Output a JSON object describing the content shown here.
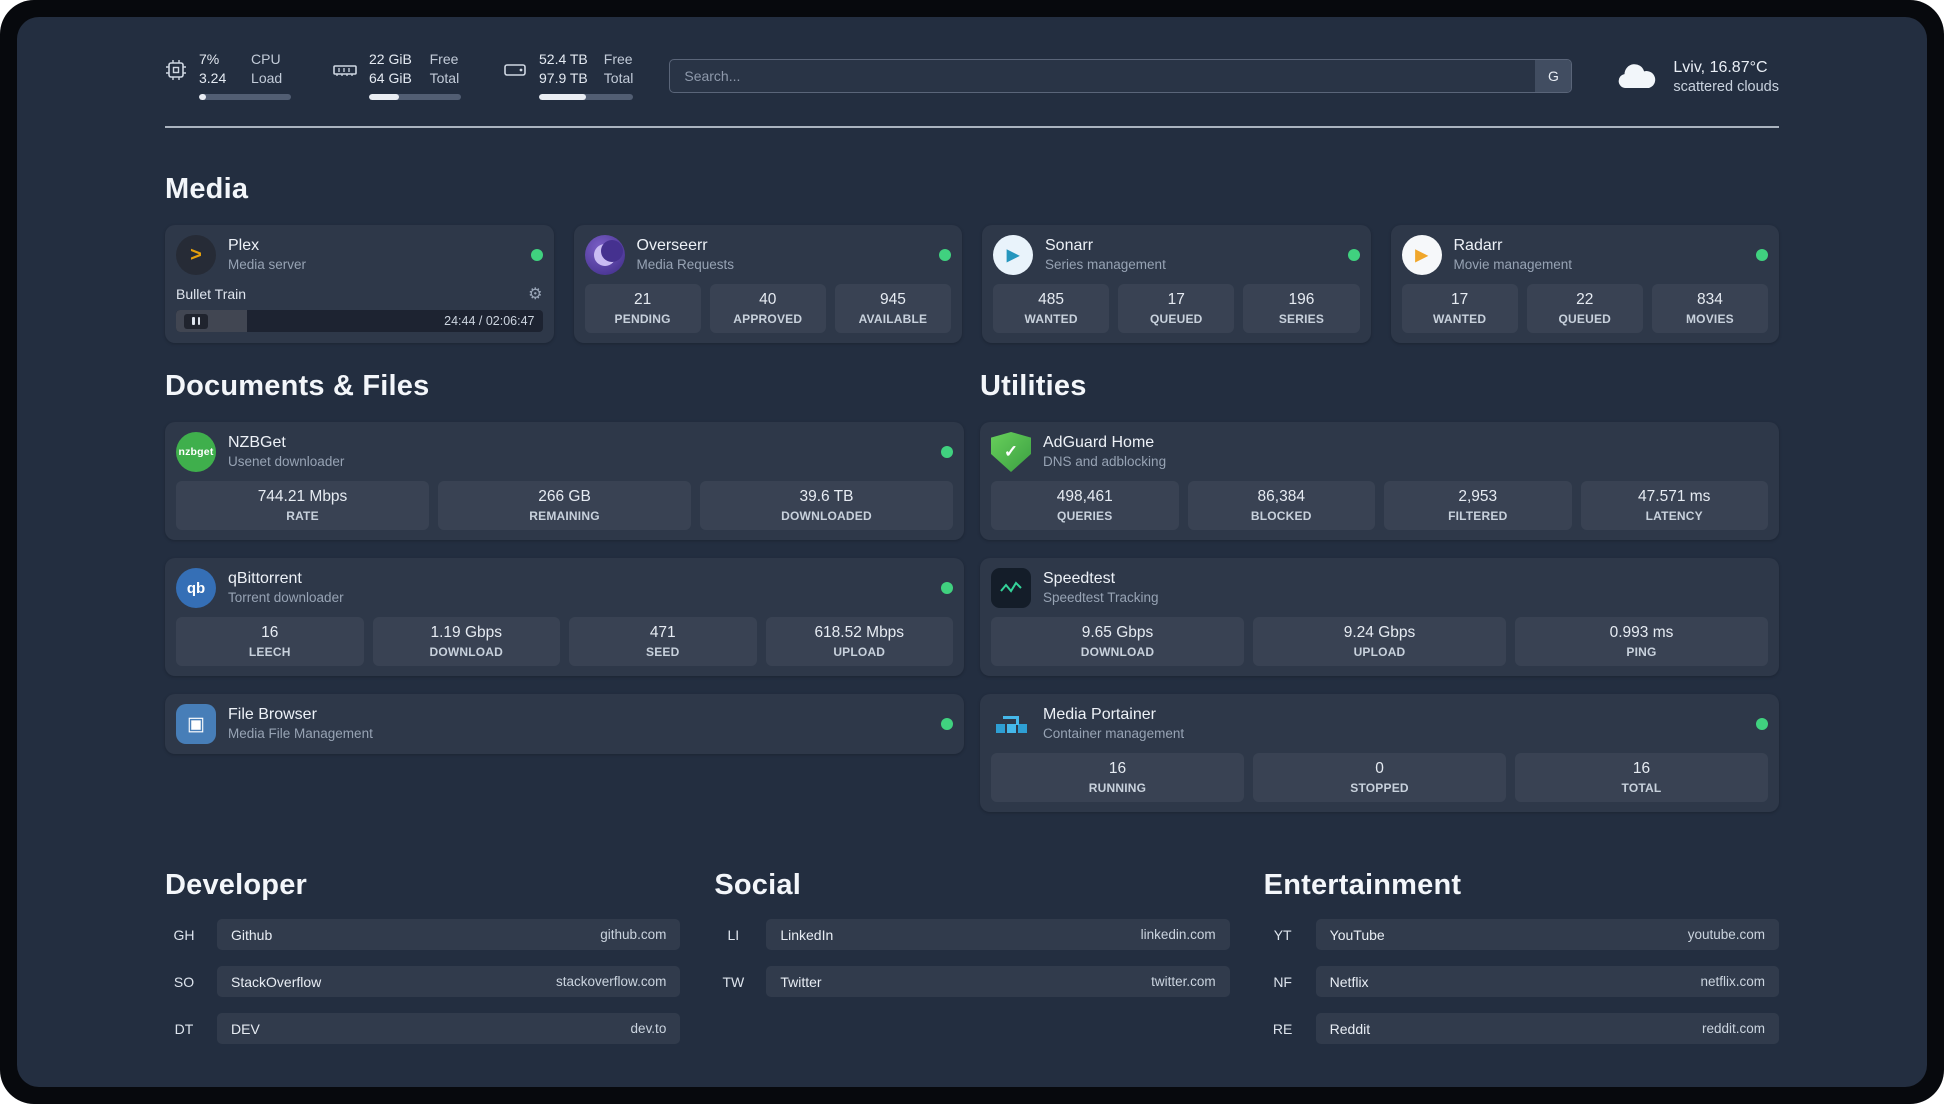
{
  "topbar": {
    "cpu": {
      "value1": "7%",
      "label1": "CPU",
      "value2": "3.24",
      "label2": "Load",
      "progress_pct": 8
    },
    "memory": {
      "value1": "22 GiB",
      "label1": "Free",
      "value2": "64 GiB",
      "label2": "Total",
      "progress_pct": 33
    },
    "disk": {
      "value1": "52.4 TB",
      "label1": "Free",
      "value2": "97.9 TB",
      "label2": "Total",
      "progress_pct": 50
    },
    "search": {
      "placeholder": "Search...",
      "button_label": "G"
    },
    "weather": {
      "location": "Lviv, 16.87°C",
      "condition": "scattered clouds"
    }
  },
  "icons": {
    "plex": ">",
    "sonarr": "▶",
    "radarr": "▶",
    "nzbget": "nzbget",
    "qbittorrent": "qb",
    "filebrowser": "▣",
    "adguard_check": "✓",
    "gear": "⚙"
  },
  "colors": {
    "status_online": "#40d17f",
    "background": "#232e40",
    "speedtest_wave": "#34d399"
  },
  "sections": {
    "media": {
      "title": "Media",
      "cards": [
        {
          "name": "Plex",
          "desc": "Media server",
          "status": "online",
          "player": {
            "title": "Bullet Train",
            "time": "24:44 / 02:06:47",
            "progress_pct": 19.5
          }
        },
        {
          "name": "Overseerr",
          "desc": "Media Requests",
          "status": "online",
          "stats": [
            {
              "value": "21",
              "label": "PENDING"
            },
            {
              "value": "40",
              "label": "APPROVED"
            },
            {
              "value": "945",
              "label": "AVAILABLE"
            }
          ]
        },
        {
          "name": "Sonarr",
          "desc": "Series management",
          "status": "online",
          "stats": [
            {
              "value": "485",
              "label": "WANTED"
            },
            {
              "value": "17",
              "label": "QUEUED"
            },
            {
              "value": "196",
              "label": "SERIES"
            }
          ]
        },
        {
          "name": "Radarr",
          "desc": "Movie management",
          "status": "online",
          "stats": [
            {
              "value": "17",
              "label": "WANTED"
            },
            {
              "value": "22",
              "label": "QUEUED"
            },
            {
              "value": "834",
              "label": "MOVIES"
            }
          ]
        }
      ]
    },
    "documents": {
      "title": "Documents & Files",
      "cards": [
        {
          "name": "NZBGet",
          "desc": "Usenet downloader",
          "status": "online",
          "stats": [
            {
              "value": "744.21 Mbps",
              "label": "RATE"
            },
            {
              "value": "266 GB",
              "label": "REMAINING"
            },
            {
              "value": "39.6 TB",
              "label": "DOWNLOADED"
            }
          ]
        },
        {
          "name": "qBittorrent",
          "desc": "Torrent downloader",
          "status": "online",
          "stats": [
            {
              "value": "16",
              "label": "LEECH"
            },
            {
              "value": "1.19 Gbps",
              "label": "DOWNLOAD"
            },
            {
              "value": "471",
              "label": "SEED"
            },
            {
              "value": "618.52 Mbps",
              "label": "UPLOAD"
            }
          ]
        },
        {
          "name": "File Browser",
          "desc": "Media File Management",
          "status": "online"
        }
      ]
    },
    "utilities": {
      "title": "Utilities",
      "cards": [
        {
          "name": "AdGuard Home",
          "desc": "DNS and adblocking",
          "stats": [
            {
              "value": "498,461",
              "label": "QUERIES"
            },
            {
              "value": "86,384",
              "label": "BLOCKED"
            },
            {
              "value": "2,953",
              "label": "FILTERED"
            },
            {
              "value": "47.571 ms",
              "label": "LATENCY"
            }
          ]
        },
        {
          "name": "Speedtest",
          "desc": "Speedtest Tracking",
          "stats": [
            {
              "value": "9.65 Gbps",
              "label": "DOWNLOAD"
            },
            {
              "value": "9.24 Gbps",
              "label": "UPLOAD"
            },
            {
              "value": "0.993 ms",
              "label": "PING"
            }
          ]
        },
        {
          "name": "Media Portainer",
          "desc": "Container management",
          "status": "online",
          "stats": [
            {
              "value": "16",
              "label": "RUNNING"
            },
            {
              "value": "0",
              "label": "STOPPED"
            },
            {
              "value": "16",
              "label": "TOTAL"
            }
          ]
        }
      ]
    }
  },
  "bookmarks": {
    "developer": {
      "title": "Developer",
      "items": [
        {
          "abbr": "GH",
          "name": "Github",
          "domain": "github.com"
        },
        {
          "abbr": "SO",
          "name": "StackOverflow",
          "domain": "stackoverflow.com"
        },
        {
          "abbr": "DT",
          "name": "DEV",
          "domain": "dev.to"
        }
      ]
    },
    "social": {
      "title": "Social",
      "items": [
        {
          "abbr": "LI",
          "name": "LinkedIn",
          "domain": "linkedin.com"
        },
        {
          "abbr": "TW",
          "name": "Twitter",
          "domain": "twitter.com"
        }
      ]
    },
    "entertainment": {
      "title": "Entertainment",
      "items": [
        {
          "abbr": "YT",
          "name": "YouTube",
          "domain": "youtube.com"
        },
        {
          "abbr": "NF",
          "name": "Netflix",
          "domain": "netflix.com"
        },
        {
          "abbr": "RE",
          "name": "Reddit",
          "domain": "reddit.com"
        }
      ]
    }
  }
}
